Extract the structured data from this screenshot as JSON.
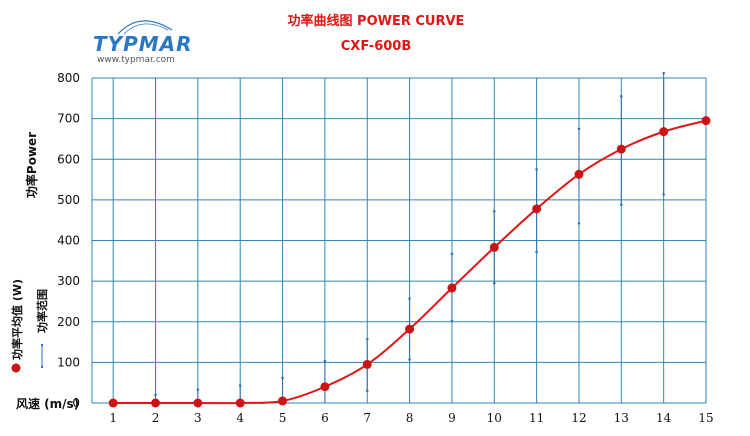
{
  "chart_data": {
    "type": "line",
    "title": "功率曲线图 POWER CURVE",
    "subtitle": "CXF-600B",
    "xlabel": "风速 (m/s)",
    "ylabel": "功率Power",
    "x": [
      1,
      2,
      3,
      4,
      5,
      6,
      7,
      8,
      9,
      10,
      11,
      12,
      13,
      14,
      15
    ],
    "xlim": [
      0.5,
      15
    ],
    "ylim": [
      0,
      800
    ],
    "yticks": [
      0,
      100,
      200,
      300,
      400,
      500,
      600,
      700,
      800
    ],
    "grid": true,
    "series": [
      {
        "name": "功率平均值 (W)",
        "values": [
          0,
          0,
          0,
          0,
          5,
          40,
          95,
          182,
          283,
          383,
          478,
          563,
          625,
          668,
          695
        ]
      },
      {
        "name": "功率范围",
        "ranges": [
          [
            0,
            0
          ],
          [
            0,
            20
          ],
          [
            0,
            33
          ],
          [
            0,
            43
          ],
          [
            0,
            62
          ],
          [
            0,
            103
          ],
          [
            30,
            157
          ],
          [
            107,
            257
          ],
          [
            202,
            367
          ],
          [
            295,
            472
          ],
          [
            372,
            575
          ],
          [
            442,
            675
          ],
          [
            488,
            755
          ],
          [
            513,
            812
          ],
          [
            695,
            695
          ]
        ]
      }
    ]
  },
  "brand": {
    "logo_text": "TYPMAR",
    "url": "www.typmar.com",
    "logo_color": "#2b78c2"
  },
  "colors": {
    "line": "#e01515",
    "marker": "#cc1414",
    "grid": "#2b88b4",
    "error_bar": "#2f6fb4",
    "title": "#e01515"
  }
}
